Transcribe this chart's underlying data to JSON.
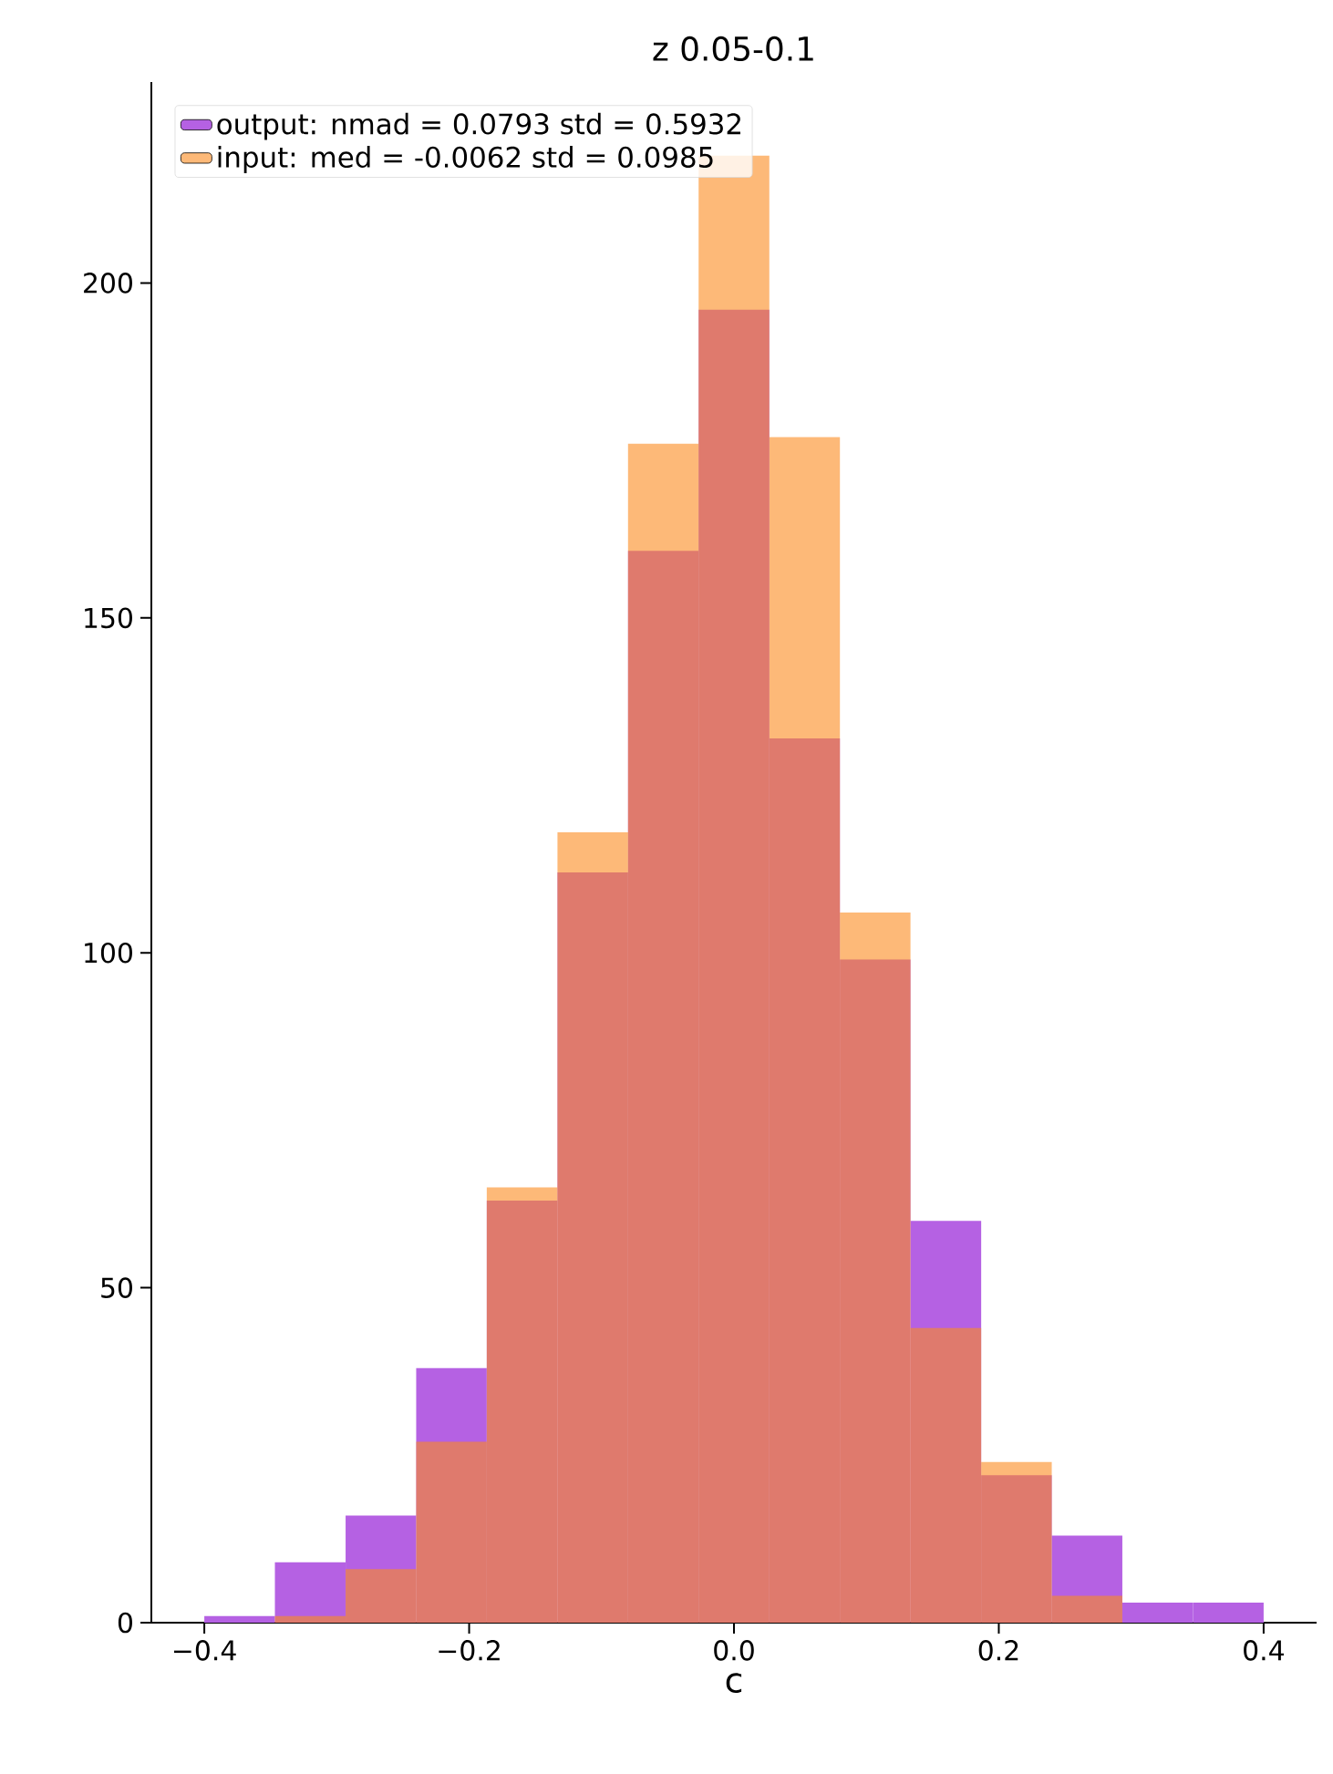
{
  "chart_data": {
    "type": "histogram",
    "title": "z 0.05-0.1",
    "xlabel": "c",
    "bins": [
      -0.4,
      -0.3467,
      -0.2933,
      -0.24,
      -0.1867,
      -0.1333,
      -0.08,
      -0.0267,
      0.0267,
      0.08,
      0.1333,
      0.1867,
      0.24,
      0.2933,
      0.3467,
      0.4
    ],
    "series": [
      {
        "name": "output: nmad = 0.0793 std = 0.5932",
        "color": "#b561e3",
        "values": [
          1,
          9,
          16,
          38,
          63,
          112,
          160,
          196,
          132,
          99,
          60,
          22,
          13,
          3,
          3
        ]
      },
      {
        "name": "input: med = -0.0062 std = 0.0985",
        "color": "#fc8a1e",
        "values": [
          0,
          1,
          8,
          27,
          65,
          118,
          176,
          219,
          177,
          106,
          44,
          24,
          4,
          0,
          0
        ]
      }
    ],
    "xlim": [
      -0.44,
      0.44
    ],
    "ylim": [
      0,
      230
    ],
    "xticks": [
      {
        "value": -0.4,
        "label": "−0.4"
      },
      {
        "value": -0.2,
        "label": "−0.2"
      },
      {
        "value": 0.0,
        "label": "0.0"
      },
      {
        "value": 0.2,
        "label": "0.2"
      },
      {
        "value": 0.4,
        "label": "0.4"
      }
    ],
    "yticks": [
      0,
      50,
      100,
      150,
      200
    ],
    "legend": "top left",
    "grid": false
  }
}
